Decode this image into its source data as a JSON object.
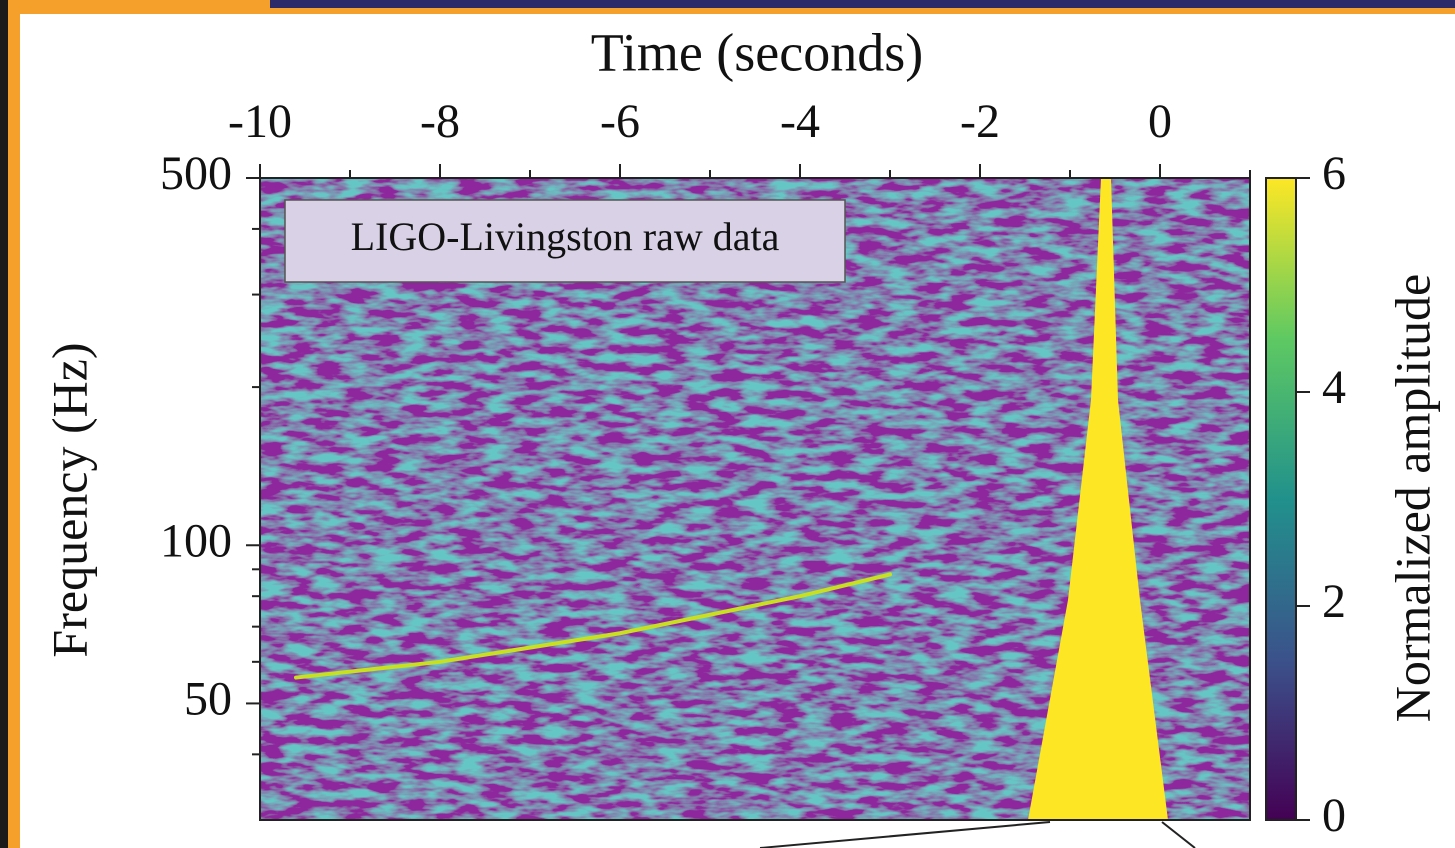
{
  "chart_data": {
    "type": "spectrogram",
    "x_label": "Time (seconds)",
    "y_label": "Frequency (Hz)",
    "annotation": "LIGO-Livingston raw data",
    "xlim": [
      -10,
      1
    ],
    "xticks": [
      -10,
      -8,
      -6,
      -4,
      -2,
      0
    ],
    "xminorticks": [
      -9,
      -7,
      -5,
      -3,
      -1,
      1
    ],
    "ylog": true,
    "ylim": [
      30,
      500
    ],
    "yticks": [
      50,
      100,
      500
    ],
    "yminorticks": [
      40,
      60,
      70,
      80,
      90,
      200,
      300,
      400
    ],
    "series": [
      {
        "color": "#c8e020",
        "x": [
          -9.6,
          -8,
          -6,
          -4,
          -3
        ],
        "values": [
          56,
          60,
          68,
          80,
          88
        ]
      }
    ],
    "colorbar": {
      "label": "Normalized amplitude",
      "lim": [
        0,
        6
      ],
      "ticks": [
        0,
        2,
        4,
        6
      ],
      "colors": [
        "#440154",
        "#3b528b",
        "#21918c",
        "#5ec962",
        "#fde725"
      ]
    }
  }
}
